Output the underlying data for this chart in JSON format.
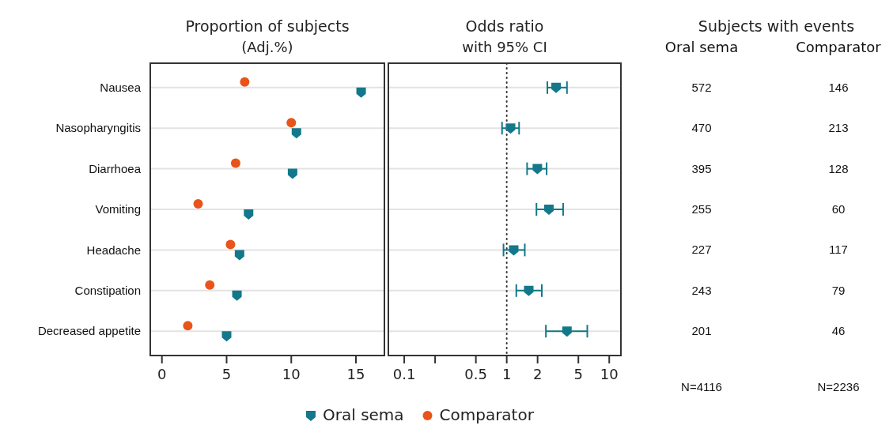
{
  "chart_data": [
    {
      "type": "scatter",
      "title": "Proportion of subjects",
      "subtitle": "(Adj.%)",
      "orientation": "horizontal",
      "categories": [
        "Nausea",
        "Nasopharyngitis",
        "Diarrhoea",
        "Vomiting",
        "Headache",
        "Constipation",
        "Decreased appetite"
      ],
      "series": [
        {
          "name": "Oral sema",
          "color": "#13788a",
          "marker": "square",
          "values": [
            15.4,
            10.4,
            10.1,
            6.7,
            6.0,
            5.8,
            5.0
          ]
        },
        {
          "name": "Comparator",
          "color": "#e8541a",
          "marker": "circle",
          "values": [
            6.4,
            10.0,
            5.7,
            2.8,
            5.3,
            3.7,
            2.0
          ]
        }
      ],
      "xlim": [
        -0.9,
        17.2
      ],
      "xticks": [
        0,
        5,
        10,
        15
      ],
      "grid": "y",
      "legend": "bottom"
    },
    {
      "type": "scatter",
      "title": "Odds ratio",
      "subtitle": "with 95% CI",
      "orientation": "horizontal",
      "series": [
        {
          "color": "#13788a",
          "marker": "square",
          "values": [
            3.03,
            1.09,
            1.99,
            2.58,
            1.17,
            1.64,
            3.87
          ],
          "errors": [
            [
              2.49,
              3.87
            ],
            [
              0.9,
              1.32
            ],
            [
              1.58,
              2.45
            ],
            [
              1.95,
              3.55
            ],
            [
              0.93,
              1.5
            ],
            [
              1.24,
              2.2
            ],
            [
              2.41,
              6.11
            ]
          ]
        }
      ],
      "log": "x",
      "xlim": [
        0.07,
        13
      ],
      "xticks": [
        0.1,
        {
          "value": 0.2,
          "label": null
        },
        0.5,
        1,
        2,
        5,
        10
      ],
      "ref_lines": [
        {
          "axis": "x",
          "value": 1,
          "line_style": "dotted",
          "color": "#333333"
        }
      ],
      "grid": "y",
      "tick_labels": "x"
    },
    {
      "type": "other",
      "title": "Subjects with events",
      "annotations": [
        "Oral sema",
        "Comparator",
        "572",
        "146",
        "470",
        "213",
        "395",
        "128",
        "255",
        "60",
        "227",
        "117",
        "243",
        "79",
        "201",
        "46",
        "N=4116",
        "N=2236"
      ]
    }
  ]
}
